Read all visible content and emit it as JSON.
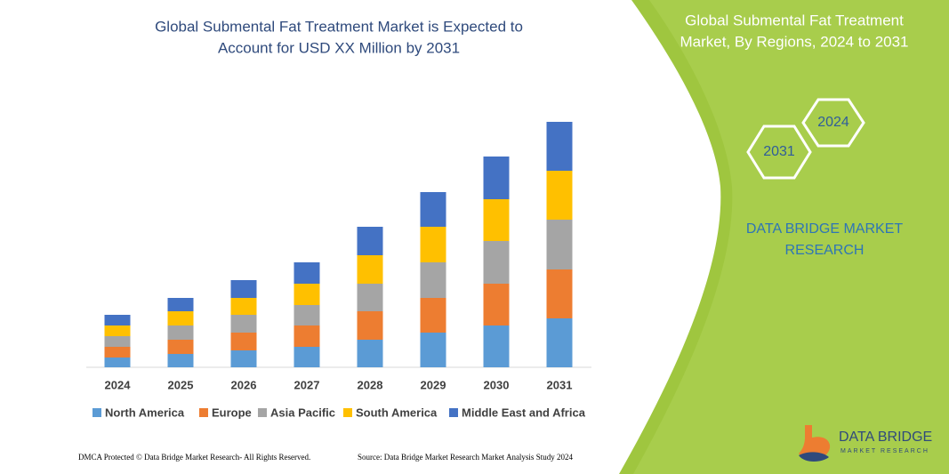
{
  "chart_data": {
    "type": "bar",
    "stacked": true,
    "title": [
      "Global Submental Fat Treatment Market is Expected to",
      "Account for USD XX Million by 2031"
    ],
    "categories": [
      "2024",
      "2025",
      "2026",
      "2027",
      "2028",
      "2029",
      "2030",
      "2031"
    ],
    "series": [
      {
        "name": "North America",
        "color": "#5b9bd5",
        "values": [
          11,
          15,
          19,
          23,
          31,
          39,
          47,
          55
        ]
      },
      {
        "name": "Europe",
        "color": "#ed7d31",
        "values": [
          12,
          16,
          20,
          24,
          32,
          39,
          47,
          55
        ]
      },
      {
        "name": "Asia Pacific",
        "color": "#a5a5a5",
        "values": [
          12,
          16,
          20,
          23,
          31,
          40,
          48,
          56
        ]
      },
      {
        "name": "South America",
        "color": "#ffc000",
        "values": [
          12,
          16,
          19,
          24,
          32,
          40,
          47,
          55
        ]
      },
      {
        "name": "Middle East and Africa",
        "color": "#4472c4",
        "values": [
          12,
          15,
          20,
          24,
          32,
          39,
          48,
          55
        ]
      }
    ],
    "ylim": [
      0,
      280
    ]
  },
  "panel": {
    "title": [
      "Global Submental Fat Treatment",
      "Market, By Regions, 2024 to 2031"
    ],
    "hexagons": [
      "2024",
      "2031"
    ],
    "brand": [
      "DATA BRIDGE MARKET",
      "RESEARCH"
    ]
  },
  "footer": {
    "left": "DMCA Protected © Data Bridge Market Research- All Rights Reserved.",
    "right": "Source: Data Bridge Market Research Market Analysis Study 2024"
  },
  "logo": {
    "name": "DATA BRIDGE",
    "tagline": "MARKET RESEARCH"
  }
}
